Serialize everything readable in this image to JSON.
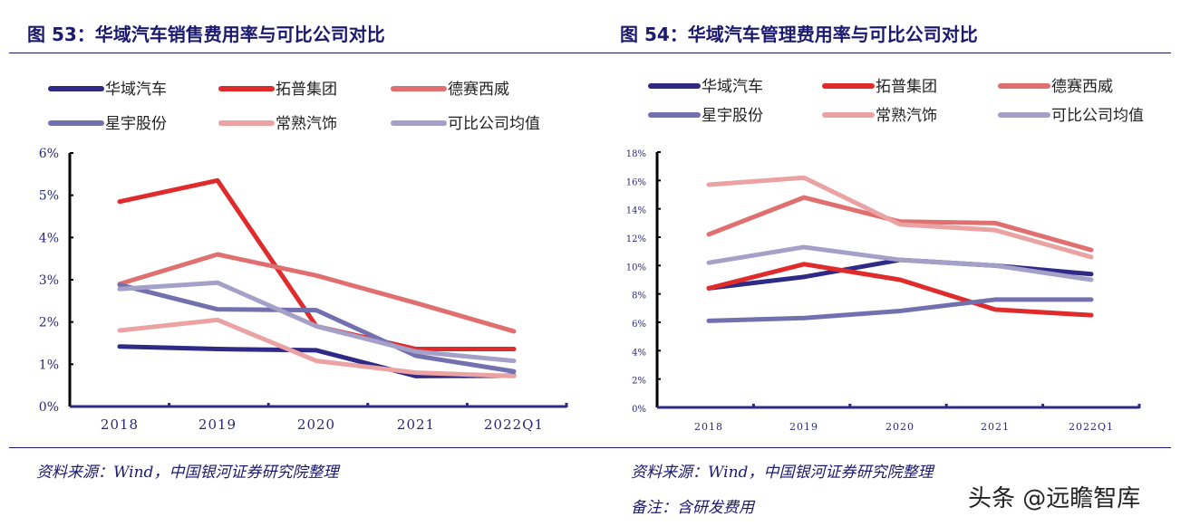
{
  "charts_meta": {
    "left_title": "图 53：华域汽车销售费用率与可比公司对比",
    "right_title": "图 54：华域汽车管理费用率与可比公司对比",
    "left_source": "资料来源：Wind，中国银河证券研究院整理",
    "right_source": "资料来源：Wind，中国银河证券研究院整理",
    "right_note": "备注：含研发费用",
    "watermark": "头条 @远瞻智库"
  },
  "chart_data": [
    {
      "type": "line",
      "title": "图 53：华域汽车销售费用率与可比公司对比",
      "categories": [
        "2018",
        "2019",
        "2020",
        "2021",
        "2022Q1"
      ],
      "ylim": [
        0,
        6
      ],
      "yticks": [
        "0%",
        "1%",
        "2%",
        "3%",
        "4%",
        "5%",
        "6%"
      ],
      "yunit": "%",
      "grid": false,
      "legend": "top",
      "series": [
        {
          "name": "华域汽车",
          "color": "#2e2a86",
          "values": [
            1.42,
            1.36,
            1.33,
            0.72,
            0.73
          ]
        },
        {
          "name": "拓普集团",
          "color": "#df2b2b",
          "values": [
            4.85,
            5.35,
            1.9,
            1.36,
            1.36
          ]
        },
        {
          "name": "德赛西威",
          "color": "#e07070",
          "values": [
            2.9,
            3.6,
            3.1,
            2.45,
            1.78
          ]
        },
        {
          "name": "星宇股份",
          "color": "#7370b0",
          "values": [
            2.88,
            2.3,
            2.28,
            1.2,
            0.83
          ]
        },
        {
          "name": "常熟汽饰",
          "color": "#eaa2a2",
          "values": [
            1.8,
            2.05,
            1.08,
            0.8,
            0.72
          ]
        },
        {
          "name": "可比公司均值",
          "color": "#a4a0c8",
          "values": [
            2.78,
            2.93,
            1.9,
            1.3,
            1.08
          ]
        }
      ]
    },
    {
      "type": "line",
      "title": "图 54：华域汽车管理费用率与可比公司对比",
      "categories": [
        "2018",
        "2019",
        "2020",
        "2021",
        "2022Q1"
      ],
      "ylim": [
        0,
        18
      ],
      "yticks": [
        "0%",
        "2%",
        "4%",
        "6%",
        "8%",
        "10%",
        "12%",
        "14%",
        "16%",
        "18%"
      ],
      "yunit": "%",
      "grid": false,
      "legend": "top",
      "series": [
        {
          "name": "华域汽车",
          "color": "#2e2a86",
          "values": [
            8.4,
            9.2,
            10.4,
            10.0,
            9.4
          ]
        },
        {
          "name": "拓普集团",
          "color": "#df2b2b",
          "values": [
            8.4,
            10.1,
            9.0,
            6.9,
            6.5
          ]
        },
        {
          "name": "德赛西威",
          "color": "#e07070",
          "values": [
            12.2,
            14.8,
            13.1,
            13.0,
            11.1
          ]
        },
        {
          "name": "星宇股份",
          "color": "#7370b0",
          "values": [
            6.1,
            6.3,
            6.8,
            7.6,
            7.6
          ]
        },
        {
          "name": "常熟汽饰",
          "color": "#eaa2a2",
          "values": [
            15.7,
            16.2,
            12.9,
            12.5,
            10.6
          ]
        },
        {
          "name": "可比公司均值",
          "color": "#a4a0c8",
          "values": [
            10.2,
            11.3,
            10.4,
            10.0,
            9.0
          ]
        }
      ]
    }
  ]
}
